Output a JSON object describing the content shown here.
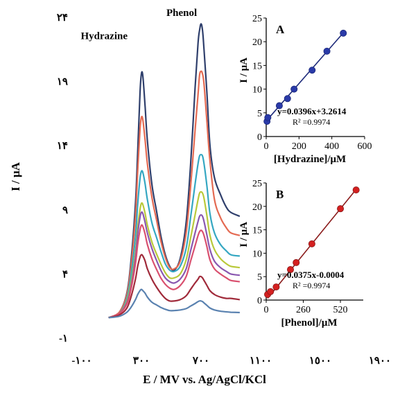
{
  "chart_data": [
    {
      "id": "main",
      "type": "line",
      "xlabel": "E / MV vs. Ag/AgCl/KCl",
      "ylabel": "I / µA",
      "x_ticks": [
        -100,
        300,
        700,
        1100,
        1500,
        1900
      ],
      "x_tick_labels": [
        "-١٠٠",
        "٣٠٠",
        "٧٠٠",
        "١١٠٠",
        "١٥٠٠",
        "١٩٠٠"
      ],
      "y_ticks": [
        -1,
        4,
        9,
        14,
        19,
        24
      ],
      "y_tick_labels": [
        "-١",
        "۴",
        "٩",
        "١۴",
        "١٩",
        "٢۴"
      ],
      "xlim": [
        -100,
        1900
      ],
      "ylim": [
        -1,
        24
      ],
      "annotations": [
        {
          "text": "Hydrazine",
          "x": 50,
          "y": 22.3
        },
        {
          "text": "Phenol",
          "x": 570,
          "y": 24.1
        }
      ],
      "x": [
        80,
        150,
        200,
        230,
        260,
        275,
        290,
        300,
        310,
        325,
        340,
        370,
        400,
        430,
        460,
        490,
        520,
        560,
        600,
        630,
        660,
        680,
        690,
        700,
        710,
        720,
        740,
        760,
        790,
        830,
        870,
        900,
        960
      ],
      "series": [
        {
          "color": "#2f3f6c",
          "values": [
            0.6,
            1.0,
            2.4,
            5.0,
            9.5,
            13.5,
            18.0,
            19.6,
            19.4,
            17.0,
            14.4,
            11.0,
            9.0,
            7.0,
            5.5,
            4.6,
            4.3,
            5.2,
            8.0,
            12.5,
            18.5,
            22.0,
            23.0,
            23.5,
            23.0,
            21.5,
            18.0,
            14.0,
            11.5,
            10.2,
            9.2,
            8.8,
            8.5
          ]
        },
        {
          "color": "#e46a52",
          "values": [
            0.6,
            1.0,
            2.3,
            4.6,
            8.5,
            12.0,
            15.2,
            16.2,
            16.0,
            14.4,
            12.6,
            10.0,
            8.3,
            6.6,
            5.3,
            4.5,
            4.4,
            5.0,
            7.2,
            10.8,
            15.2,
            18.0,
            19.5,
            19.8,
            19.6,
            18.8,
            15.8,
            12.8,
            9.8,
            8.4,
            7.6,
            7.2,
            7.0
          ]
        },
        {
          "color": "#35a7c2",
          "values": [
            0.6,
            0.9,
            2.0,
            3.9,
            6.9,
            9.4,
            11.4,
            12.0,
            11.9,
            11.0,
            9.8,
            8.0,
            6.9,
            5.8,
            4.8,
            4.3,
            4.2,
            4.6,
            6.0,
            8.4,
            11.0,
            12.6,
            13.2,
            13.3,
            13.2,
            12.6,
            10.8,
            8.7,
            7.2,
            6.3,
            5.8,
            5.5,
            5.4
          ]
        },
        {
          "color": "#b9c93a",
          "values": [
            0.6,
            0.9,
            1.8,
            3.3,
            5.7,
            7.6,
            9.0,
            9.5,
            9.4,
            8.7,
            7.8,
            6.5,
            5.6,
            4.8,
            4.1,
            3.7,
            3.7,
            4.0,
            5.1,
            6.8,
            8.6,
            9.8,
            10.3,
            10.4,
            10.3,
            9.9,
            8.5,
            7.0,
            5.9,
            5.2,
            4.8,
            4.6,
            4.5
          ]
        },
        {
          "color": "#8a58b0",
          "values": [
            0.6,
            0.9,
            1.7,
            3.0,
            5.3,
            7.1,
            8.4,
            8.8,
            8.7,
            8.0,
            7.2,
            6.0,
            5.1,
            4.3,
            3.7,
            3.4,
            3.3,
            3.6,
            4.4,
            5.8,
            7.2,
            8.1,
            8.5,
            8.6,
            8.5,
            8.1,
            7.0,
            5.9,
            5.0,
            4.5,
            4.2,
            4.0,
            3.9
          ]
        },
        {
          "color": "#d9506f",
          "values": [
            0.6,
            0.9,
            1.6,
            2.8,
            4.8,
            6.3,
            7.4,
            7.8,
            7.7,
            7.1,
            6.3,
            5.2,
            4.4,
            3.7,
            3.2,
            2.9,
            2.8,
            3.1,
            3.8,
            5.0,
            6.2,
            7.0,
            7.3,
            7.4,
            7.3,
            7.0,
            6.1,
            5.1,
            4.4,
            4.0,
            3.7,
            3.5,
            3.4
          ]
        },
        {
          "color": "#a02a3a",
          "values": [
            0.6,
            0.8,
            1.3,
            2.2,
            3.6,
            4.6,
            5.3,
            5.5,
            5.4,
            5.0,
            4.4,
            3.6,
            3.0,
            2.5,
            2.1,
            1.9,
            1.9,
            2.0,
            2.3,
            2.8,
            3.3,
            3.6,
            3.8,
            3.8,
            3.7,
            3.5,
            3.1,
            2.7,
            2.4,
            2.2,
            2.1,
            2.1,
            2.0
          ]
        },
        {
          "color": "#5a82b0",
          "values": [
            0.6,
            0.7,
            1.0,
            1.4,
            2.0,
            2.4,
            2.7,
            2.8,
            2.7,
            2.5,
            2.2,
            1.8,
            1.6,
            1.4,
            1.25,
            1.15,
            1.15,
            1.2,
            1.3,
            1.5,
            1.7,
            1.85,
            1.9,
            1.9,
            1.85,
            1.75,
            1.55,
            1.35,
            1.2,
            1.1,
            1.05,
            1.02,
            1.0
          ]
        }
      ]
    },
    {
      "id": "inset_a",
      "type": "scatter",
      "panel_label": "A",
      "xlabel": "[Hydrazine]/μM",
      "ylabel": "I / μA",
      "x_ticks": [
        0,
        200,
        400,
        600
      ],
      "y_ticks": [
        0,
        5,
        10,
        15,
        20,
        25
      ],
      "xlim": [
        0,
        600
      ],
      "ylim": [
        0,
        25
      ],
      "equation": "y=0.0396x+3.2614",
      "r2": "R² =0.9974",
      "line_color": "#1d2a7a",
      "marker_color": "#2a3aa8",
      "fit": {
        "slope": 0.0396,
        "intercept": 3.2614
      },
      "x": [
        5,
        10,
        80,
        130,
        170,
        280,
        370,
        470
      ],
      "y": [
        3.2,
        4.0,
        6.5,
        8.0,
        10.0,
        14.0,
        18.0,
        21.8
      ]
    },
    {
      "id": "inset_b",
      "type": "scatter",
      "panel_label": "B",
      "xlabel": "[Phenol]/μM",
      "ylabel": "I / μA",
      "x_ticks": [
        0,
        260,
        520
      ],
      "y_ticks": [
        0,
        5,
        10,
        15,
        20,
        25
      ],
      "xlim": [
        0,
        680
      ],
      "ylim": [
        0,
        25
      ],
      "equation": "y=0.0375x-0.0004",
      "r2": "R² =0.9974",
      "line_color": "#8a1a1a",
      "marker_color": "#d42020",
      "fit": {
        "slope": 0.0375,
        "intercept": -0.0004
      },
      "x": [
        10,
        30,
        70,
        170,
        210,
        320,
        520,
        630
      ],
      "y": [
        1.2,
        1.8,
        2.8,
        6.5,
        8.0,
        12.0,
        19.5,
        23.5
      ]
    }
  ]
}
